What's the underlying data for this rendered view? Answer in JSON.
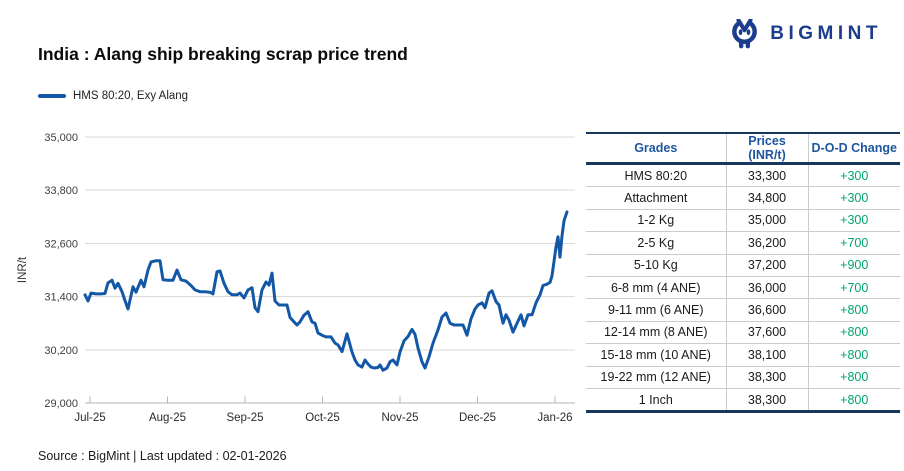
{
  "header": {
    "brand": "BIGMINT",
    "title": "India : Alang ship breaking scrap price trend",
    "legend_label": "HMS 80:20, Exy Alang"
  },
  "footer": {
    "source_line": "Source : BigMint | Last updated : 02-01-2026"
  },
  "colors": {
    "line": "#1358a7",
    "brand_navy": "#1c3d8e",
    "table_border_navy": "#17375e",
    "header_blue": "#1e56a0",
    "change_green": "#00a76e",
    "gridline": "#dadada",
    "axis": "#b5b5b5"
  },
  "table": {
    "columns": [
      "Grades",
      "Prices (INR/t)",
      "D-O-D Change"
    ],
    "rows": [
      {
        "grade": "HMS 80:20",
        "price": "33,300",
        "change": "+300"
      },
      {
        "grade": "Attachment",
        "price": "34,800",
        "change": "+300"
      },
      {
        "grade": "1-2 Kg",
        "price": "35,000",
        "change": "+300"
      },
      {
        "grade": "2-5 Kg",
        "price": "36,200",
        "change": "+700"
      },
      {
        "grade": "5-10 Kg",
        "price": "37,200",
        "change": "+900"
      },
      {
        "grade": "6-8 mm (4 ANE)",
        "price": "36,000",
        "change": "+700"
      },
      {
        "grade": "9-11 mm (6 ANE)",
        "price": "36,600",
        "change": "+800"
      },
      {
        "grade": "12-14 mm (8 ANE)",
        "price": "37,600",
        "change": "+800"
      },
      {
        "grade": "15-18 mm (10 ANE)",
        "price": "38,100",
        "change": "+800"
      },
      {
        "grade": "19-22 mm (12 ANE)",
        "price": "38,300",
        "change": "+800"
      },
      {
        "grade": "1 Inch",
        "price": "38,300",
        "change": "+800"
      }
    ]
  },
  "chart_data": {
    "type": "line",
    "title": "India : Alang ship breaking scrap price trend",
    "series_name": "HMS 80:20, Exy Alang",
    "xlabel": "",
    "ylabel": "INR/t",
    "ylim": [
      29000,
      35000
    ],
    "y_ticks": [
      35000,
      33800,
      32600,
      31400,
      30200,
      29000
    ],
    "x_ticks": [
      "Jul-25",
      "Aug-25",
      "Sep-25",
      "Oct-25",
      "Nov-25",
      "Dec-25",
      "Jan-26"
    ],
    "grid": "horizontal",
    "legend_position": "top-left",
    "x_unit": "months since Jul-25 tick",
    "points": [
      [
        -0.065,
        31440
      ],
      [
        -0.026,
        31300
      ],
      [
        0.013,
        31480
      ],
      [
        0.077,
        31460
      ],
      [
        0.142,
        31460
      ],
      [
        0.194,
        31470
      ],
      [
        0.232,
        31710
      ],
      [
        0.284,
        31770
      ],
      [
        0.323,
        31590
      ],
      [
        0.361,
        31700
      ],
      [
        0.413,
        31510
      ],
      [
        0.452,
        31310
      ],
      [
        0.49,
        31120
      ],
      [
        0.555,
        31620
      ],
      [
        0.594,
        31500
      ],
      [
        0.658,
        31770
      ],
      [
        0.697,
        31620
      ],
      [
        0.748,
        32000
      ],
      [
        0.787,
        32180
      ],
      [
        0.852,
        32210
      ],
      [
        0.903,
        32210
      ],
      [
        0.942,
        31780
      ],
      [
        1.006,
        31770
      ],
      [
        1.071,
        31770
      ],
      [
        1.123,
        32000
      ],
      [
        1.174,
        31780
      ],
      [
        1.239,
        31750
      ],
      [
        1.303,
        31650
      ],
      [
        1.355,
        31550
      ],
      [
        1.419,
        31510
      ],
      [
        1.484,
        31510
      ],
      [
        1.548,
        31500
      ],
      [
        1.587,
        31460
      ],
      [
        1.639,
        31960
      ],
      [
        1.677,
        31980
      ],
      [
        1.729,
        31700
      ],
      [
        1.781,
        31510
      ],
      [
        1.832,
        31440
      ],
      [
        1.897,
        31440
      ],
      [
        1.935,
        31480
      ],
      [
        1.987,
        31370
      ],
      [
        2.039,
        31550
      ],
      [
        2.09,
        31600
      ],
      [
        2.129,
        31150
      ],
      [
        2.168,
        31060
      ],
      [
        2.219,
        31550
      ],
      [
        2.271,
        31730
      ],
      [
        2.31,
        31660
      ],
      [
        2.348,
        31930
      ],
      [
        2.387,
        31300
      ],
      [
        2.439,
        31210
      ],
      [
        2.49,
        31210
      ],
      [
        2.542,
        31210
      ],
      [
        2.581,
        30930
      ],
      [
        2.632,
        30830
      ],
      [
        2.671,
        30760
      ],
      [
        2.71,
        30830
      ],
      [
        2.761,
        30980
      ],
      [
        2.813,
        31060
      ],
      [
        2.865,
        30830
      ],
      [
        2.903,
        30800
      ],
      [
        2.942,
        30580
      ],
      [
        2.994,
        30530
      ],
      [
        3.045,
        30490
      ],
      [
        3.11,
        30490
      ],
      [
        3.161,
        30350
      ],
      [
        3.2,
        30310
      ],
      [
        3.252,
        30160
      ],
      [
        3.316,
        30560
      ],
      [
        3.381,
        30150
      ],
      [
        3.419,
        29970
      ],
      [
        3.458,
        29860
      ],
      [
        3.51,
        29810
      ],
      [
        3.548,
        29970
      ],
      [
        3.587,
        29880
      ],
      [
        3.626,
        29810
      ],
      [
        3.665,
        29790
      ],
      [
        3.716,
        29800
      ],
      [
        3.742,
        29860
      ],
      [
        3.781,
        29740
      ],
      [
        3.832,
        29790
      ],
      [
        3.871,
        29930
      ],
      [
        3.91,
        29970
      ],
      [
        3.961,
        29860
      ],
      [
        4.0,
        30150
      ],
      [
        4.052,
        30400
      ],
      [
        4.103,
        30500
      ],
      [
        4.155,
        30660
      ],
      [
        4.194,
        30550
      ],
      [
        4.232,
        30240
      ],
      [
        4.284,
        29930
      ],
      [
        4.323,
        29790
      ],
      [
        4.374,
        30040
      ],
      [
        4.426,
        30350
      ],
      [
        4.49,
        30650
      ],
      [
        4.542,
        30940
      ],
      [
        4.594,
        31030
      ],
      [
        4.645,
        30800
      ],
      [
        4.697,
        30760
      ],
      [
        4.761,
        30760
      ],
      [
        4.813,
        30760
      ],
      [
        4.865,
        30530
      ],
      [
        4.916,
        30900
      ],
      [
        4.968,
        31120
      ],
      [
        5.006,
        31210
      ],
      [
        5.058,
        31260
      ],
      [
        5.097,
        31150
      ],
      [
        5.148,
        31480
      ],
      [
        5.187,
        31530
      ],
      [
        5.239,
        31290
      ],
      [
        5.277,
        31210
      ],
      [
        5.329,
        30800
      ],
      [
        5.368,
        30990
      ],
      [
        5.406,
        30870
      ],
      [
        5.458,
        30600
      ],
      [
        5.51,
        30800
      ],
      [
        5.561,
        30990
      ],
      [
        5.6,
        30740
      ],
      [
        5.652,
        30990
      ],
      [
        5.703,
        30990
      ],
      [
        5.755,
        31260
      ],
      [
        5.806,
        31440
      ],
      [
        5.845,
        31650
      ],
      [
        5.897,
        31680
      ],
      [
        5.935,
        31720
      ],
      [
        5.961,
        31870
      ],
      [
        5.987,
        32190
      ],
      [
        6.013,
        32520
      ],
      [
        6.039,
        32750
      ],
      [
        6.065,
        32290
      ],
      [
        6.09,
        32770
      ],
      [
        6.116,
        33110
      ],
      [
        6.155,
        33310
      ]
    ]
  }
}
